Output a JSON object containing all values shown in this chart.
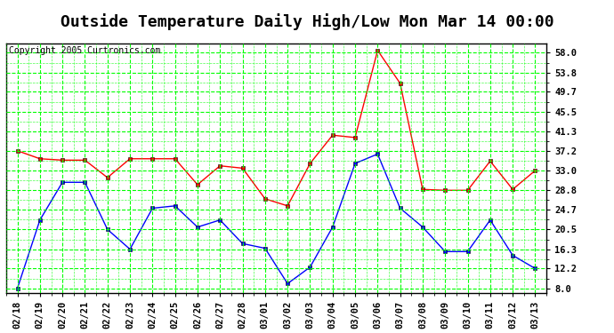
{
  "title": "Outside Temperature Daily High/Low Mon Mar 14 00:00",
  "copyright": "Copyright 2005 Curtronics.com",
  "x_labels": [
    "02/18",
    "02/19",
    "02/20",
    "02/21",
    "02/22",
    "02/23",
    "02/24",
    "02/25",
    "02/26",
    "02/27",
    "02/28",
    "03/01",
    "03/02",
    "03/03",
    "03/04",
    "03/05",
    "03/06",
    "03/07",
    "03/08",
    "03/09",
    "03/10",
    "03/11",
    "03/12",
    "03/13"
  ],
  "high_values": [
    37.2,
    35.5,
    35.2,
    35.2,
    31.5,
    35.5,
    35.5,
    35.5,
    30.0,
    34.0,
    33.5,
    27.0,
    25.5,
    34.5,
    40.5,
    40.0,
    58.5,
    51.5,
    29.0,
    28.8,
    28.8,
    35.0,
    29.0,
    33.0
  ],
  "low_values": [
    8.0,
    22.5,
    30.5,
    30.5,
    20.5,
    16.3,
    25.0,
    25.5,
    21.0,
    22.5,
    17.5,
    16.5,
    9.0,
    12.5,
    21.0,
    34.5,
    36.5,
    25.0,
    21.0,
    15.8,
    15.8,
    22.5,
    15.0,
    12.2
  ],
  "high_color": "#ff0000",
  "low_color": "#0000ff",
  "marker": "s",
  "marker_size": 3,
  "bg_color": "#ffffff",
  "plot_bg_color": "#ffffff",
  "grid_color": "#00ff00",
  "grid_minor_color": "#00cc00",
  "yticks": [
    8.0,
    12.2,
    16.3,
    20.5,
    24.7,
    28.8,
    33.0,
    37.2,
    41.3,
    45.5,
    49.7,
    53.8,
    58.0
  ],
  "ylim": [
    7.0,
    60.0
  ],
  "title_fontsize": 13,
  "tick_fontsize": 7.5,
  "copyright_fontsize": 7
}
